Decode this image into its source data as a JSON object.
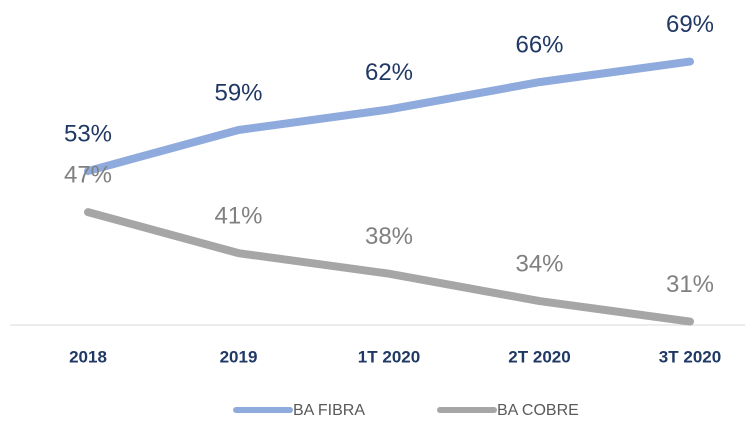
{
  "chart_data": {
    "type": "line",
    "categories": [
      "2018",
      "2019",
      "1T 2020",
      "2T 2020",
      "3T 2020"
    ],
    "series": [
      {
        "name": "BA FIBRA",
        "color": "#8faadc",
        "label_color": "#203864",
        "values": [
          53,
          59,
          62,
          66,
          69
        ],
        "value_labels": [
          "53%",
          "59%",
          "62%",
          "66%",
          "69%"
        ]
      },
      {
        "name": "BA COBRE",
        "color": "#a6a6a6",
        "label_color": "#808080",
        "values": [
          47,
          41,
          38,
          34,
          31
        ],
        "value_labels": [
          "47%",
          "41%",
          "38%",
          "34%",
          "31%"
        ]
      }
    ],
    "ylim": [
      30.5,
      78
    ],
    "legend": "bottom"
  }
}
